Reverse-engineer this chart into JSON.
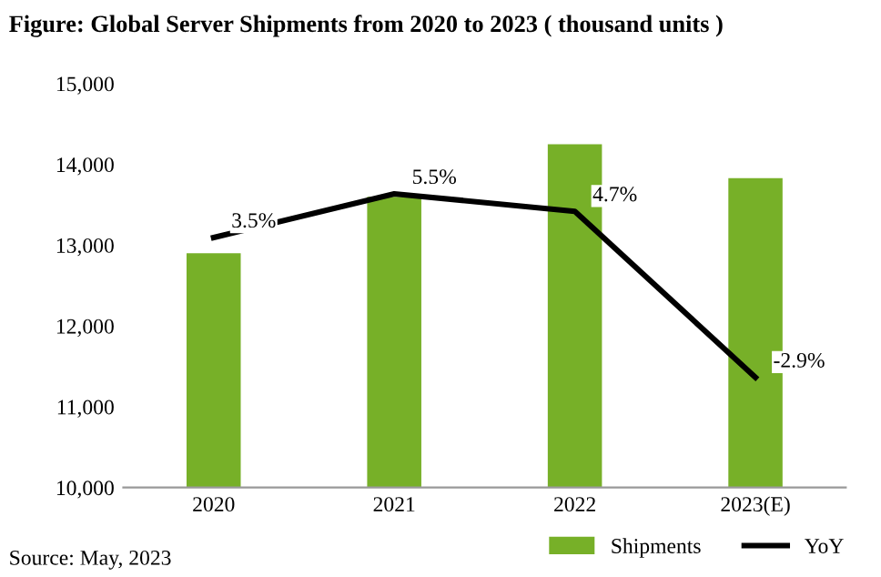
{
  "chart_data": {
    "type": "bar",
    "title": "Figure: Global Server Shipments from 2020 to 2023 ( thousand units )",
    "categories": [
      "2020",
      "2021",
      "2022",
      "2023(E)"
    ],
    "series": [
      {
        "name": "Shipments",
        "color": "#77b028",
        "values": [
          12900,
          13600,
          14250,
          13830
        ]
      },
      {
        "name": "YoY",
        "type": "line",
        "axis": "y2",
        "color": "#000000",
        "values": [
          3.5,
          5.5,
          4.7,
          -2.9
        ],
        "value_labels": [
          "3.5%",
          "5.5%",
          "4.7%",
          "-2.9%"
        ]
      }
    ],
    "ylim": [
      10000,
      15000
    ],
    "yticks": [
      {
        "value": 10000,
        "label": "10,000"
      },
      {
        "value": 11000,
        "label": "11,000"
      },
      {
        "value": 12000,
        "label": "12,000"
      },
      {
        "value": 13000,
        "label": "13,000"
      },
      {
        "value": 14000,
        "label": "14,000"
      },
      {
        "value": 15000,
        "label": "15,000"
      }
    ],
    "tick_labels": "xy",
    "grid": false,
    "legend": "bottom right",
    "marker": "none",
    "annotations": [
      "Source: May, 2023"
    ]
  }
}
